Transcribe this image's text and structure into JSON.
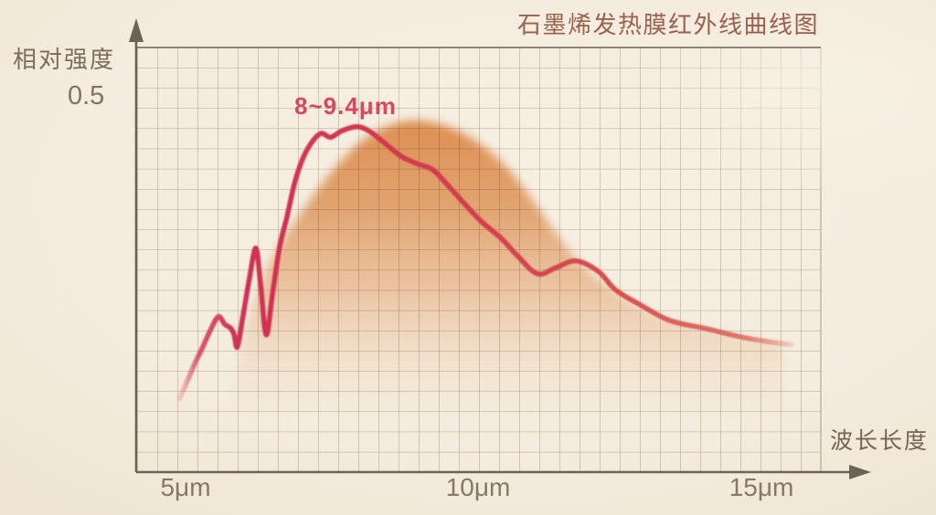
{
  "title": "石墨烯发热膜红外线曲线图",
  "y_axis": {
    "label": "相对强度",
    "tick": "0.5"
  },
  "x_axis": {
    "label": "波长长度",
    "ticks": [
      "5μm",
      "10μm",
      "15μm"
    ]
  },
  "annotation": "8~9.4μm",
  "colors": {
    "background": "#f4ecde",
    "grid_line": "#a1917d",
    "axis_line": "#6d6256",
    "curve_red": "#d03552",
    "area_orange": "#dc8948",
    "title_text": "#9b5f4e",
    "label_text": "#7d6e5c",
    "annotation_text": "#d84660"
  },
  "chart_data": {
    "type": "area",
    "title": "石墨烯发热膜红外线曲线图",
    "xlabel": "波长长度",
    "ylabel": "相对强度",
    "x_unit": "μm",
    "x_ticks_um": [
      5,
      10,
      15
    ],
    "y_tick_value": 0.5,
    "xlim": [
      4.3,
      16.3
    ],
    "ylim": [
      0,
      0.56
    ],
    "grid": true,
    "annotation": {
      "text": "8~9.4μm",
      "peak_range_um": [
        8,
        9.4
      ]
    },
    "series": [
      {
        "name": "intensity-curve",
        "type": "line",
        "points": [
          [
            4.89,
            0.097
          ],
          [
            5.03,
            0.121
          ],
          [
            5.16,
            0.144
          ],
          [
            5.3,
            0.166
          ],
          [
            5.43,
            0.188
          ],
          [
            5.57,
            0.206
          ],
          [
            5.68,
            0.196
          ],
          [
            5.78,
            0.191
          ],
          [
            5.84,
            0.183
          ],
          [
            5.9,
            0.166
          ],
          [
            6.0,
            0.208
          ],
          [
            6.11,
            0.257
          ],
          [
            6.22,
            0.297
          ],
          [
            6.3,
            0.251
          ],
          [
            6.4,
            0.182
          ],
          [
            6.51,
            0.236
          ],
          [
            6.63,
            0.297
          ],
          [
            6.76,
            0.338
          ],
          [
            6.9,
            0.385
          ],
          [
            7.05,
            0.418
          ],
          [
            7.21,
            0.439
          ],
          [
            7.36,
            0.449
          ],
          [
            7.52,
            0.444
          ],
          [
            7.73,
            0.453
          ],
          [
            7.98,
            0.458
          ],
          [
            8.17,
            0.453
          ],
          [
            8.35,
            0.443
          ],
          [
            8.54,
            0.431
          ],
          [
            8.76,
            0.418
          ],
          [
            9.05,
            0.408
          ],
          [
            9.29,
            0.401
          ],
          [
            9.51,
            0.384
          ],
          [
            9.83,
            0.357
          ],
          [
            10.14,
            0.332
          ],
          [
            10.48,
            0.31
          ],
          [
            10.76,
            0.287
          ],
          [
            11.11,
            0.263
          ],
          [
            11.43,
            0.271
          ],
          [
            11.78,
            0.28
          ],
          [
            12.17,
            0.266
          ],
          [
            12.46,
            0.242
          ],
          [
            12.89,
            0.222
          ],
          [
            13.41,
            0.201
          ],
          [
            14.05,
            0.19
          ],
          [
            14.59,
            0.18
          ],
          [
            15.11,
            0.173
          ],
          [
            15.52,
            0.169
          ]
        ]
      },
      {
        "name": "energy-area",
        "type": "area",
        "points": [
          [
            5.83,
            0.105
          ],
          [
            6.06,
            0.19
          ],
          [
            6.38,
            0.263
          ],
          [
            6.7,
            0.309
          ],
          [
            7.02,
            0.345
          ],
          [
            7.33,
            0.378
          ],
          [
            7.65,
            0.408
          ],
          [
            8.0,
            0.435
          ],
          [
            8.37,
            0.454
          ],
          [
            8.73,
            0.464
          ],
          [
            9.08,
            0.466
          ],
          [
            9.48,
            0.46
          ],
          [
            9.87,
            0.447
          ],
          [
            10.27,
            0.426
          ],
          [
            10.67,
            0.396
          ],
          [
            11.06,
            0.357
          ],
          [
            11.46,
            0.314
          ],
          [
            11.86,
            0.277
          ],
          [
            12.33,
            0.247
          ],
          [
            12.89,
            0.218
          ],
          [
            13.44,
            0.2
          ],
          [
            14.08,
            0.188
          ],
          [
            14.71,
            0.178
          ],
          [
            15.35,
            0.171
          ]
        ]
      }
    ]
  }
}
